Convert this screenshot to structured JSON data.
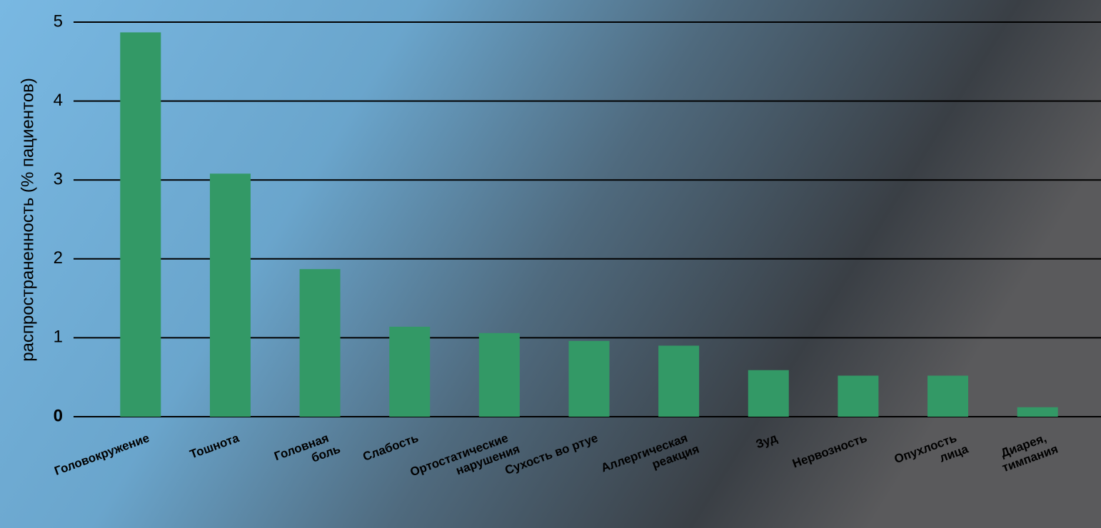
{
  "chart_data": {
    "type": "bar",
    "y_label": "распространенность (% пациентов)",
    "categories": [
      [
        "Головокружение"
      ],
      [
        "Тошнота"
      ],
      [
        "Головная",
        "боль"
      ],
      [
        "Слабость"
      ],
      [
        "Ортостатические",
        "нарушения"
      ],
      [
        "Сухость во ртуе"
      ],
      [
        "Аллергическая",
        "реакция"
      ],
      [
        "Зуд"
      ],
      [
        "Нервозность"
      ],
      [
        "Опухлость",
        "лица"
      ],
      [
        "Диарея,",
        "тимпания"
      ]
    ],
    "values": [
      4.87,
      3.08,
      1.87,
      1.14,
      1.06,
      0.96,
      0.9,
      0.59,
      0.52,
      0.52,
      0.12
    ],
    "color": "#339966",
    "ylim": [
      0,
      5
    ],
    "yticks": [
      0,
      1,
      2,
      3,
      4,
      5
    ],
    "grid": true
  }
}
